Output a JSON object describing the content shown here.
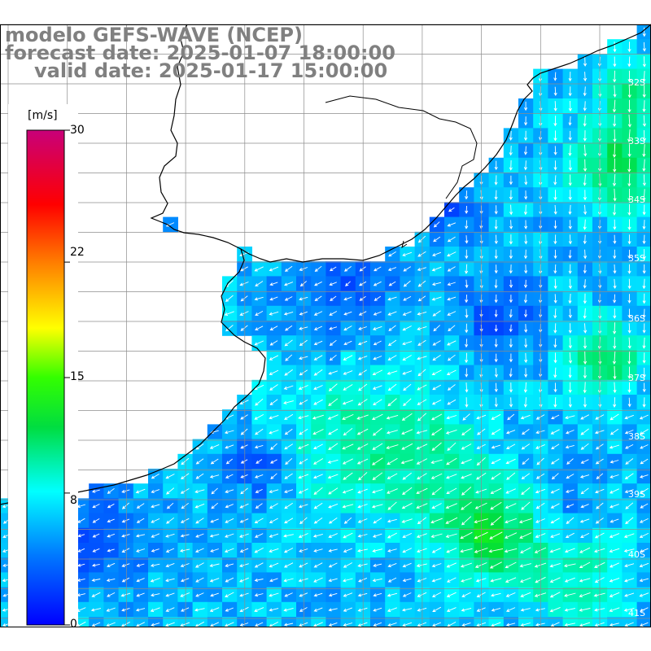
{
  "title": {
    "model": "modelo GEFS-WAVE (NCEP)",
    "forecast": "forecast date: 2025-01-07 18:00:00",
    "valid": "valid date: 2025-01-17 15:00:00"
  },
  "colorbar": {
    "unit": "[m/s]",
    "ticks": [
      "30",
      "22",
      "15",
      "8",
      "0"
    ],
    "tick_values": [
      30,
      22,
      15,
      8,
      0
    ],
    "min": 0,
    "max": 30,
    "colors": [
      "#0000ff",
      "#00a0ff",
      "#00ffff",
      "#00ff00",
      "#ffff00",
      "#ff8000",
      "#ff0000",
      "#c00080"
    ]
  },
  "lat_labels": [
    "32S",
    "33S",
    "34S",
    "35S",
    "36S",
    "37S",
    "38S",
    "39S",
    "40S",
    "41S"
  ],
  "colors": {
    "land": "#ffffff",
    "grid": "#8c8c8c",
    "coast": "#000000",
    "arrow": "#ffffff"
  }
}
